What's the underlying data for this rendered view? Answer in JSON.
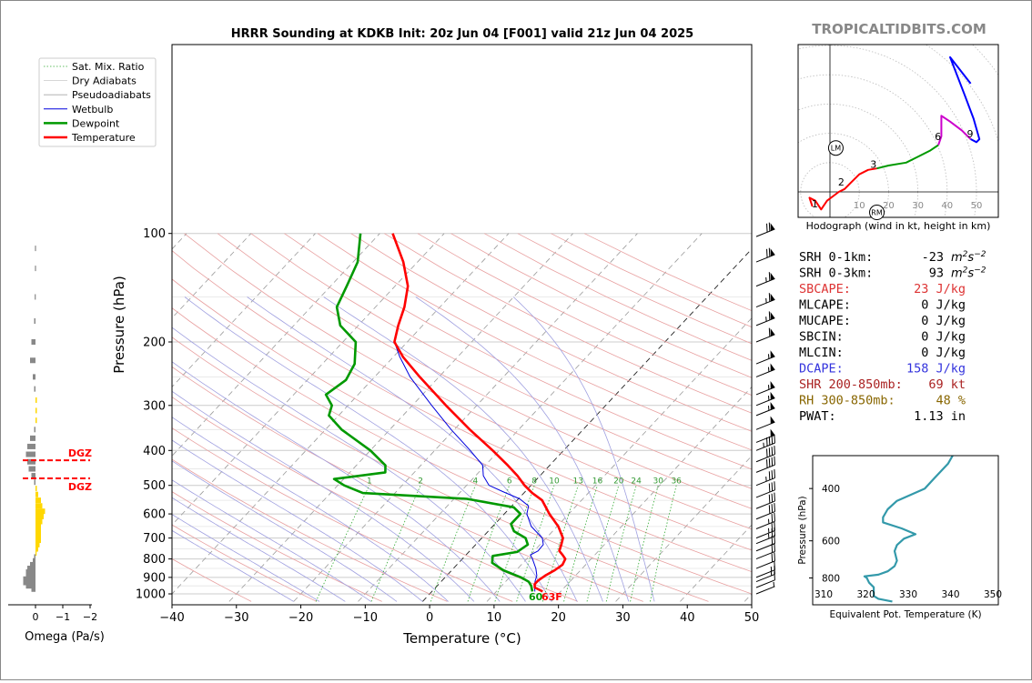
{
  "title": "HRRR Sounding at KDKB Init: 20z Jun 04 [F001] valid 21z Jun 04 2025",
  "watermark": "TROPICALTIDBITS.COM",
  "colors": {
    "temperature": "#ff0000",
    "dewpoint": "#009900",
    "wetbulb": "#0000dd",
    "dry_adiabat": "#e8a0a0",
    "moist_adiabat": "#a0a0e0",
    "mixing_ratio": "#33aa33",
    "hodograph_low": "#ff0000",
    "hodograph_mid": "#009900",
    "hodograph_upper": "#cc00cc",
    "hodograph_top": "#0000ff",
    "theta_e": "#3399aa",
    "omega_up": "#ffd700",
    "omega_down": "#888888",
    "srh": "#000000",
    "sbcape": "#dd3333",
    "dcape": "#3333dd",
    "shr": "#aa2222",
    "rh": "#886600"
  },
  "chart_data": [
    {
      "type": "line",
      "name": "skewt",
      "title": "HRRR Sounding at KDKB Init: 20z Jun 04 [F001] valid 21z Jun 04 2025",
      "xlabel": "Temperature (°C)",
      "ylabel": "Pressure (hPa)",
      "xlim": [
        -40,
        50
      ],
      "ylim": [
        1050,
        100
      ],
      "y_scale": "log",
      "skewed": true,
      "x_ticks": [
        "−40",
        "−30",
        "−20",
        "−10",
        "0",
        "10",
        "20",
        "30",
        "40",
        "50"
      ],
      "y_ticks": [
        "100",
        "200",
        "300",
        "400",
        "500",
        "600",
        "700",
        "800",
        "900",
        "1000"
      ],
      "grid": true,
      "legend": {
        "position": "top-left",
        "entries": [
          "Sat. Mix. Ratio",
          "Dry Adiabats",
          "Pseudoadiabats",
          "Wetbulb",
          "Dewpoint",
          "Temperature"
        ]
      },
      "mixing_ratio_labels": [
        "1",
        "2",
        "4",
        "6",
        "8",
        "10",
        "13",
        "16",
        "20",
        "24",
        "30",
        "36"
      ],
      "series": [
        {
          "name": "Temperature",
          "points": [
            [
              985,
              17.2
            ],
            [
              960,
              15.4
            ],
            [
              940,
              14.9
            ],
            [
              920,
              14.9
            ],
            [
              890,
              15.3
            ],
            [
              860,
              16.0
            ],
            [
              830,
              16.4
            ],
            [
              800,
              16.0
            ],
            [
              780,
              15.0
            ],
            [
              760,
              13.9
            ],
            [
              730,
              13.3
            ],
            [
              700,
              12.6
            ],
            [
              650,
              10.2
            ],
            [
              600,
              7.0
            ],
            [
              550,
              3.9
            ],
            [
              525,
              1.3
            ],
            [
              500,
              -1.0
            ],
            [
              470,
              -3.5
            ],
            [
              440,
              -6.5
            ],
            [
              400,
              -11.0
            ],
            [
              350,
              -17.6
            ],
            [
              300,
              -24.8
            ],
            [
              250,
              -33.0
            ],
            [
              220,
              -38.5
            ],
            [
              200,
              -42.0
            ],
            [
              180,
              -43.8
            ],
            [
              160,
              -45.5
            ],
            [
              140,
              -48.0
            ],
            [
              120,
              -52.2
            ],
            [
              100,
              -58.0
            ]
          ]
        },
        {
          "name": "Dewpoint",
          "points": [
            [
              985,
              15.6
            ],
            [
              950,
              14.6
            ],
            [
              925,
              13.6
            ],
            [
              900,
              11.8
            ],
            [
              860,
              8.0
            ],
            [
              820,
              5.2
            ],
            [
              785,
              4.3
            ],
            [
              765,
              7.5
            ],
            [
              730,
              8.1
            ],
            [
              700,
              6.8
            ],
            [
              670,
              4.0
            ],
            [
              640,
              2.5
            ],
            [
              600,
              2.5
            ],
            [
              575,
              0.5
            ],
            [
              545,
              -8.0
            ],
            [
              525,
              -25.0
            ],
            [
              500,
              -29.0
            ],
            [
              480,
              -31.5
            ],
            [
              460,
              -24.5
            ],
            [
              440,
              -25.5
            ],
            [
              400,
              -30.0
            ],
            [
              350,
              -37.5
            ],
            [
              320,
              -41.5
            ],
            [
              300,
              -42.5
            ],
            [
              280,
              -45.0
            ],
            [
              255,
              -44.0
            ],
            [
              230,
              -45.0
            ],
            [
              200,
              -48.0
            ],
            [
              180,
              -52.8
            ],
            [
              160,
              -56.0
            ],
            [
              140,
              -57.5
            ],
            [
              120,
              -59.3
            ],
            [
              100,
              -63.0
            ]
          ]
        },
        {
          "name": "Wetbulb",
          "points": [
            [
              985,
              16.0
            ],
            [
              950,
              15.1
            ],
            [
              920,
              14.5
            ],
            [
              890,
              14.0
            ],
            [
              850,
              12.8
            ],
            [
              800,
              10.9
            ],
            [
              780,
              10.0
            ],
            [
              760,
              10.6
            ],
            [
              730,
              10.5
            ],
            [
              700,
              9.4
            ],
            [
              650,
              6.0
            ],
            [
              600,
              3.5
            ],
            [
              570,
              2.6
            ],
            [
              545,
              0.2
            ],
            [
              520,
              -3.5
            ],
            [
              500,
              -6.5
            ],
            [
              470,
              -8.8
            ],
            [
              440,
              -10.4
            ],
            [
              400,
              -14.5
            ],
            [
              350,
              -20.5
            ],
            [
              300,
              -27.0
            ],
            [
              250,
              -34.5
            ],
            [
              220,
              -39.0
            ],
            [
              200,
              -42.0
            ]
          ]
        }
      ],
      "surface_labels": {
        "dewpoint": "60",
        "temperature": "63F"
      }
    },
    {
      "type": "line",
      "name": "hodograph",
      "title": "",
      "xlabel": "Hodograph (wind in kt, height in km)",
      "ring_labels": [
        "10",
        "20",
        "30",
        "40",
        "50"
      ],
      "height_labels": [
        "1",
        "2",
        "3",
        "6",
        "9"
      ],
      "markers": [
        "LM",
        "RM"
      ],
      "segments": [
        {
          "name": "0-3 km",
          "points": [
            [
              -6,
              -5
            ],
            [
              -7,
              -2
            ],
            [
              -5,
              -3
            ],
            [
              -3,
              -6
            ],
            [
              -1,
              -3
            ],
            [
              3,
              0
            ],
            [
              5,
              1
            ],
            [
              7,
              3
            ],
            [
              10,
              6
            ],
            [
              13,
              7.5
            ],
            [
              16,
              8
            ]
          ]
        },
        {
          "name": "3-6 km",
          "points": [
            [
              16,
              8
            ],
            [
              20,
              9
            ],
            [
              26,
              10
            ],
            [
              30,
              12
            ],
            [
              34,
              14
            ],
            [
              37,
              16
            ]
          ]
        },
        {
          "name": "6-9 km",
          "points": [
            [
              37,
              16
            ],
            [
              38,
              19
            ],
            [
              38,
              26
            ],
            [
              41,
              24
            ],
            [
              45,
              21
            ],
            [
              48,
              18
            ]
          ]
        },
        {
          "name": "9+ km",
          "points": [
            [
              48,
              18
            ],
            [
              50,
              17
            ],
            [
              51,
              18
            ],
            [
              49,
              25
            ],
            [
              46,
              33
            ],
            [
              41,
              46
            ],
            [
              48,
              37
            ]
          ]
        }
      ]
    },
    {
      "type": "line",
      "name": "theta_e",
      "title": "",
      "xlabel": "Equivalent Pot. Temperature (K)",
      "ylabel": "Pressure (hPa)",
      "xlim": [
        310,
        350
      ],
      "ylim": [
        985,
        310
      ],
      "x_ticks": [
        "310",
        "320",
        "330",
        "340",
        "350"
      ],
      "y_ticks": [
        "400",
        "600",
        "800"
      ],
      "series": [
        {
          "name": "Equivalent Pot. Temperature",
          "points": [
            [
              960,
              325
            ],
            [
              940,
              322
            ],
            [
              920,
              321
            ],
            [
              890,
              321
            ],
            [
              860,
              321
            ],
            [
              830,
              320
            ],
            [
              800,
              319.5
            ],
            [
              790,
              319
            ],
            [
              780,
              322
            ],
            [
              760,
              324
            ],
            [
              730,
              325.5
            ],
            [
              700,
              326
            ],
            [
              650,
              325.5
            ],
            [
              620,
              326
            ],
            [
              590,
              327.5
            ],
            [
              570,
              330
            ],
            [
              545,
              327
            ],
            [
              520,
              323
            ],
            [
              500,
              323
            ],
            [
              470,
              324
            ],
            [
              440,
              326
            ],
            [
              400,
              332
            ],
            [
              370,
              334
            ],
            [
              330,
              337
            ],
            [
              310,
              338
            ]
          ]
        }
      ]
    },
    {
      "type": "bar",
      "name": "omega",
      "title": "",
      "xlabel": "Omega (Pa/s)",
      "xlim": [
        0.5,
        -2.2
      ],
      "x_ticks": [
        "0",
        "−1",
        "−2"
      ],
      "annotation": "DGZ",
      "dgz_pressures": [
        426,
        478
      ],
      "values": [
        [
          970,
          0.15
        ],
        [
          950,
          0.35
        ],
        [
          930,
          0.45
        ],
        [
          910,
          0.45
        ],
        [
          890,
          0.35
        ],
        [
          870,
          0.35
        ],
        [
          850,
          0.3
        ],
        [
          830,
          0.2
        ],
        [
          810,
          0.1
        ],
        [
          790,
          0.05
        ],
        [
          770,
          -0.02
        ],
        [
          750,
          -0.1
        ],
        [
          730,
          -0.15
        ],
        [
          710,
          -0.2
        ],
        [
          690,
          -0.2
        ],
        [
          670,
          -0.2
        ],
        [
          650,
          -0.2
        ],
        [
          630,
          -0.25
        ],
        [
          610,
          -0.3
        ],
        [
          590,
          -0.35
        ],
        [
          570,
          -0.25
        ],
        [
          550,
          -0.2
        ],
        [
          530,
          -0.1
        ],
        [
          510,
          -0.05
        ],
        [
          490,
          0.05
        ],
        [
          470,
          0.15
        ],
        [
          450,
          0.25
        ],
        [
          430,
          0.3
        ],
        [
          410,
          0.35
        ],
        [
          390,
          0.3
        ],
        [
          370,
          0.2
        ],
        [
          350,
          0.05
        ],
        [
          330,
          -0.05
        ],
        [
          310,
          -0.05
        ],
        [
          290,
          -0.05
        ],
        [
          270,
          0.05
        ],
        [
          250,
          0.1
        ],
        [
          225,
          0.2
        ],
        [
          200,
          0.15
        ],
        [
          175,
          0.05
        ],
        [
          150,
          0.03
        ],
        [
          125,
          0.02
        ],
        [
          110,
          0.02
        ]
      ]
    },
    {
      "type": "scatter",
      "name": "wind_barbs",
      "title": "",
      "points": [
        [
          1000,
          3
        ],
        [
          960,
          8
        ],
        [
          925,
          13
        ],
        [
          900,
          15
        ],
        [
          850,
          19
        ],
        [
          800,
          18
        ],
        [
          760,
          22
        ],
        [
          725,
          24
        ],
        [
          700,
          26
        ],
        [
          660,
          25
        ],
        [
          620,
          28
        ],
        [
          580,
          30
        ],
        [
          540,
          32
        ],
        [
          500,
          36
        ],
        [
          460,
          40
        ],
        [
          430,
          40
        ],
        [
          400,
          45
        ],
        [
          380,
          50
        ],
        [
          350,
          52
        ],
        [
          320,
          55
        ],
        [
          300,
          55
        ],
        [
          280,
          55
        ],
        [
          250,
          55
        ],
        [
          230,
          55
        ],
        [
          200,
          60
        ],
        [
          180,
          65
        ],
        [
          160,
          65
        ],
        [
          140,
          65
        ],
        [
          120,
          70
        ],
        [
          102,
          70
        ]
      ]
    }
  ],
  "params": [
    {
      "label": "SRH 0-1km:",
      "value": "-23",
      "unit": "m",
      "unit_sup": "2",
      "unit2": "s",
      "unit2_sup": "−2",
      "color": "srh"
    },
    {
      "label": "SRH 0-3km:",
      "value": "93",
      "unit": "m",
      "unit_sup": "2",
      "unit2": "s",
      "unit2_sup": "−2",
      "color": "srh"
    },
    {
      "label": "SBCAPE:",
      "value": "23 J/kg",
      "color": "sbcape"
    },
    {
      "label": "MLCAPE:",
      "value": "0 J/kg",
      "color": "srh"
    },
    {
      "label": "MUCAPE:",
      "value": "0 J/kg",
      "color": "srh"
    },
    {
      "label": "SBCIN:",
      "value": "0 J/kg",
      "color": "srh"
    },
    {
      "label": "MLCIN:",
      "value": "0 J/kg",
      "color": "srh"
    },
    {
      "label": "DCAPE:",
      "value": "158 J/kg",
      "color": "dcape"
    },
    {
      "label": "SHR 200-850mb:",
      "value": "69 kt",
      "color": "shr"
    },
    {
      "label": "RH 300-850mb:",
      "value": "48 %",
      "color": "rh"
    },
    {
      "label": "PWAT:",
      "value": "1.13 in",
      "color": "srh"
    }
  ]
}
